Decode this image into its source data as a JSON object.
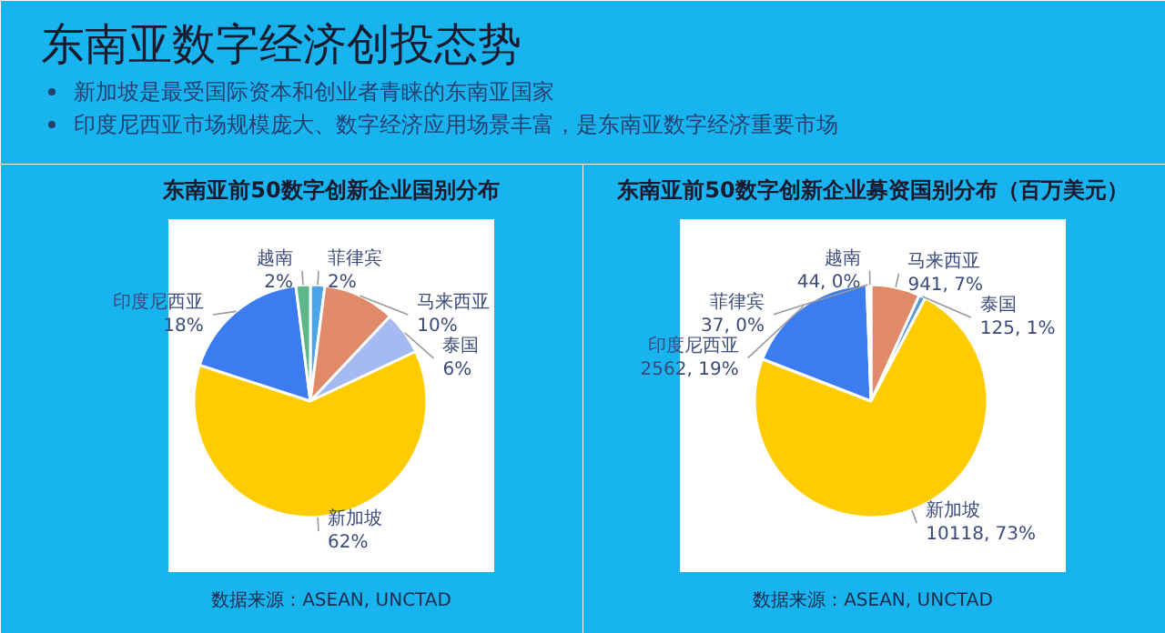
{
  "chart_data": [
    {
      "type": "other",
      "title": "东南亚数字经济创投态势",
      "annotations": [
        "新加坡是最受国际资本和创业者青睐的东南亚国家",
        "印度尼西亚市场规模庞大、数字经济应用场景丰富，是东南亚数字经济重要市场"
      ]
    },
    {
      "type": "pie",
      "title": "东南亚前50数字创新企业国别分布",
      "categories": [
        "菲律宾",
        "马来西亚",
        "泰国",
        "新加坡",
        "印度尼西亚",
        "越南"
      ],
      "values": [
        2,
        10,
        6,
        62,
        18,
        2
      ],
      "colors": [
        "#4ba3e8",
        "#e08a6a",
        "#a5b9f2",
        "#ffcc00",
        "#3b7cf0",
        "#5cb88a"
      ],
      "value_labels": [
        "2%",
        "10%",
        "6%",
        "62%",
        "18%",
        "2%"
      ],
      "annotations": [
        "数据来源：ASEAN, UNCTAD"
      ]
    },
    {
      "type": "pie",
      "title": "东南亚前50数字创新企业募资国别分布（百万美元）",
      "categories": [
        "马来西亚",
        "泰国",
        "新加坡",
        "印度尼西亚",
        "菲律宾",
        "越南"
      ],
      "values": [
        941,
        125,
        10118,
        2562,
        37,
        44
      ],
      "colors": [
        "#e08a6a",
        "#5b9bd5",
        "#ffcc00",
        "#3b7cf0",
        "#7fb2f0",
        "#5cb88a"
      ],
      "value_labels": [
        "941, 7%",
        "125, 1%",
        "10118, 73%",
        "2562, 19%",
        "37, 0%",
        "44, 0%"
      ],
      "annotations": [
        "数据来源：ASEAN, UNCTAD"
      ]
    }
  ]
}
